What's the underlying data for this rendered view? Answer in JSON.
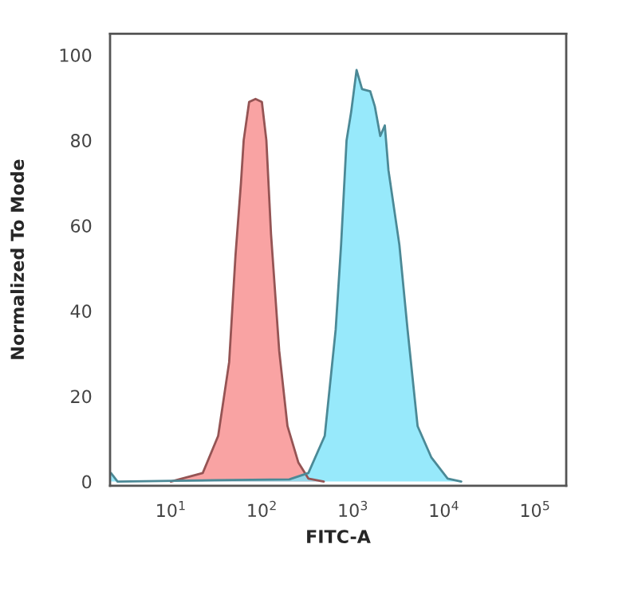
{
  "chart_data": {
    "type": "area",
    "xlabel": "FITC-A",
    "ylabel": "Normalized To Mode",
    "log": "x",
    "grid": false,
    "xlim": [
      2.15,
      220000
    ],
    "ylim": [
      -1,
      105
    ],
    "xticks": [
      {
        "value": 10,
        "label": "10$^{1}$"
      },
      {
        "value": 100,
        "label": "10$^{2}$"
      },
      {
        "value": 1000,
        "label": "10$^{3}$"
      },
      {
        "value": 10000,
        "label": "10$^{4}$"
      },
      {
        "value": 100000,
        "label": "10$^{5}$"
      }
    ],
    "yticks": [
      0,
      20,
      40,
      60,
      80,
      100
    ],
    "series": [
      {
        "color": "#f88c8c",
        "x": [
          10,
          22.4,
          33.1,
          43.7,
          51.3,
          58.9,
          63.1,
          72.4,
          85.1,
          100,
          112,
          126,
          155,
          191,
          251,
          324,
          479
        ],
        "values": [
          0,
          2,
          10.7,
          28,
          53,
          70,
          80,
          89,
          89.7,
          89,
          80,
          58,
          30.6,
          13,
          4.5,
          0.7,
          0
        ]
      },
      {
        "color": "#7de4fa",
        "x": [
          2.2,
          2.6,
          30,
          200,
          324,
          490,
          646,
          741,
          851,
          955,
          1096,
          1259,
          1549,
          1738,
          1995,
          2239,
          2455,
          3236,
          3981,
          5129,
          7244,
          10965,
          15488
        ],
        "values": [
          2,
          0,
          0.3,
          0.5,
          2,
          10.7,
          35.6,
          55.5,
          80,
          86.6,
          96.5,
          92,
          91.5,
          88,
          81,
          83.5,
          73,
          55.5,
          35.6,
          13,
          5.7,
          0.7,
          0
        ]
      }
    ]
  }
}
